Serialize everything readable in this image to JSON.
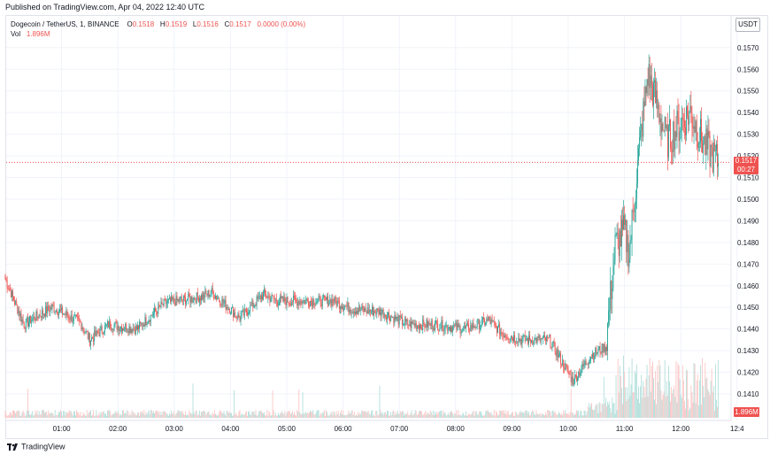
{
  "header": {
    "published": "Published on TradingView.com, Apr 04, 2022 12:40 UTC"
  },
  "legend": {
    "symbol": "Dogecoin / TetherUS, 1, BINANCE",
    "o_label": "O",
    "o_value": "0.1518",
    "h_label": "H",
    "h_value": "0.1519",
    "l_label": "L",
    "l_value": "0.1516",
    "c_label": "C",
    "c_value": "0.1517",
    "change": "0.0000 (0.00%)",
    "vol_label": "Vol",
    "vol_value": "1.896M"
  },
  "price_scale": {
    "currency": "USDT",
    "last_price": "0.1517",
    "countdown": "00:27",
    "volume_tag": "1.896M"
  },
  "footer": {
    "brand": "TradingView"
  },
  "colors": {
    "up": "#26a69a",
    "down": "#ef5350",
    "up_volume": "#b2dfdb",
    "down_volume": "#fac6c5",
    "grid": "#f0f3fa"
  },
  "chart_data": {
    "type": "candlestick",
    "symbol": "Dogecoin / TetherUS",
    "interval": "1",
    "exchange": "BINANCE",
    "ylim": [
      0.1406,
      0.1575
    ],
    "y_ticks": [
      "0.1410",
      "0.1420",
      "0.1430",
      "0.1440",
      "0.1450",
      "0.1460",
      "0.1470",
      "0.1480",
      "0.1490",
      "0.1500",
      "0.1510",
      "0.1520",
      "0.1530",
      "0.1540",
      "0.1550",
      "0.1560",
      "0.1570"
    ],
    "x_ticks": [
      "01:00",
      "02:00",
      "03:00",
      "04:00",
      "05:00",
      "06:00",
      "07:00",
      "08:00",
      "09:00",
      "10:00",
      "11:00",
      "12:00",
      "12:4"
    ],
    "last_price": 0.1517,
    "approx_close_path": [
      {
        "t": "00:00",
        "p": 0.1463
      },
      {
        "t": "00:20",
        "p": 0.1442
      },
      {
        "t": "00:30",
        "p": 0.1445
      },
      {
        "t": "00:50",
        "p": 0.145
      },
      {
        "t": "01:20",
        "p": 0.1443
      },
      {
        "t": "01:30",
        "p": 0.1435
      },
      {
        "t": "01:50",
        "p": 0.1442
      },
      {
        "t": "02:20",
        "p": 0.144
      },
      {
        "t": "02:50",
        "p": 0.1452
      },
      {
        "t": "03:30",
        "p": 0.1455
      },
      {
        "t": "03:40",
        "p": 0.1457
      },
      {
        "t": "04:10",
        "p": 0.1445
      },
      {
        "t": "04:35",
        "p": 0.1456
      },
      {
        "t": "04:50",
        "p": 0.1453
      },
      {
        "t": "05:20",
        "p": 0.1453
      },
      {
        "t": "05:50",
        "p": 0.1453
      },
      {
        "t": "06:10",
        "p": 0.1449
      },
      {
        "t": "06:40",
        "p": 0.1448
      },
      {
        "t": "07:10",
        "p": 0.1442
      },
      {
        "t": "07:40",
        "p": 0.1442
      },
      {
        "t": "08:10",
        "p": 0.144
      },
      {
        "t": "08:35",
        "p": 0.1444
      },
      {
        "t": "08:50",
        "p": 0.1438
      },
      {
        "t": "09:10",
        "p": 0.1435
      },
      {
        "t": "09:40",
        "p": 0.1435
      },
      {
        "t": "10:05",
        "p": 0.1416
      },
      {
        "t": "10:25",
        "p": 0.1428
      },
      {
        "t": "10:40",
        "p": 0.1432
      },
      {
        "t": "10:50",
        "p": 0.1478
      },
      {
        "t": "11:00",
        "p": 0.1485
      },
      {
        "t": "11:05",
        "p": 0.1475
      },
      {
        "t": "11:15",
        "p": 0.152
      },
      {
        "t": "11:25",
        "p": 0.1558
      },
      {
        "t": "11:35",
        "p": 0.1543
      },
      {
        "t": "11:45",
        "p": 0.1527
      },
      {
        "t": "12:00",
        "p": 0.1535
      },
      {
        "t": "12:10",
        "p": 0.154
      },
      {
        "t": "12:25",
        "p": 0.1525
      },
      {
        "t": "12:40",
        "p": 0.1517
      }
    ],
    "volume_last": "1.896M"
  }
}
